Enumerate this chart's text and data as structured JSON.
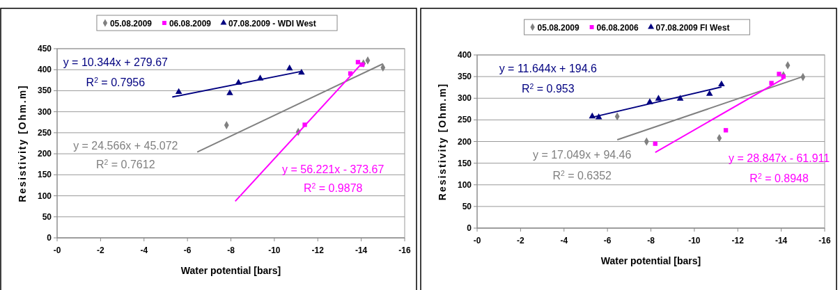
{
  "chart_data": [
    {
      "type": "scatter",
      "xlabel": "Water potential [bars]",
      "ylabel": "Resistivity [Ohm.m]",
      "xlim": [
        0,
        -16
      ],
      "xticks": [
        {
          "value": 0,
          "label": "-0"
        },
        -2,
        -4,
        -6,
        -8,
        -10,
        -12,
        -14,
        -16
      ],
      "ylim": [
        0,
        450
      ],
      "yticks": [
        0,
        50,
        100,
        150,
        200,
        250,
        300,
        350,
        400,
        450
      ],
      "grid": "y",
      "legend": "top",
      "series": [
        {
          "name": "05.08.2009",
          "color": "#808080",
          "marker": "diamond",
          "x": [
            -7.8,
            -11.1,
            -14.1,
            -14.3,
            -15
          ],
          "values": [
            268,
            252,
            415,
            422,
            405
          ]
        },
        {
          "name": "06.08.2009",
          "color": "#ff00ff",
          "marker": "square",
          "x": [
            -11.4,
            -13.5,
            -13.85,
            -14.05
          ],
          "values": [
            269,
            391,
            418,
            412
          ]
        },
        {
          "name": "07.08.2009 - WDI West",
          "color": "#000080",
          "marker": "triangle",
          "x": [
            -5.6,
            -7.95,
            -8.35,
            -9.35,
            -10.7,
            -11.25
          ],
          "values": [
            347,
            344,
            369,
            379,
            403,
            393
          ]
        },
        {
          "type": "line",
          "color": "#000080",
          "x": [
            -5.3,
            -11.25
          ],
          "values": [
            335,
            396
          ]
        },
        {
          "type": "line",
          "color": "#808080",
          "x": [
            -6.45,
            -15
          ],
          "values": [
            204,
            414
          ]
        },
        {
          "type": "line",
          "color": "#ff00ff",
          "x": [
            -8.2,
            -14.05
          ],
          "values": [
            87,
            416
          ]
        }
      ],
      "annotations": [
        "y = 10.344x + 279.67",
        "R$^{2}$ = 0.7956",
        "y = 24.566x + 45.072",
        "R$^{2}$ = 0.7612",
        "y = 56.221x - 373.67",
        "R$^{2}$ = 0.9878"
      ]
    },
    {
      "type": "scatter",
      "xlabel": "Water potential [bars]",
      "ylabel": "Resistivity [Ohm.m]",
      "xlim": [
        0,
        -16
      ],
      "xticks": [
        {
          "value": 0,
          "label": "-0"
        },
        -2,
        -4,
        -6,
        -8,
        -10,
        -12,
        -14,
        -16
      ],
      "ylim": [
        0,
        400
      ],
      "yticks": [
        0,
        50,
        100,
        150,
        200,
        250,
        300,
        350,
        400
      ],
      "grid": "y",
      "legend": "top",
      "series": [
        {
          "name": "05.08.2009",
          "color": "#808080",
          "marker": "diamond",
          "x": [
            -6.45,
            -7.8,
            -11.15,
            -14.1,
            -14.3,
            -15
          ],
          "values": [
            258,
            200,
            208,
            353,
            376,
            349
          ]
        },
        {
          "name": "06.08.2006",
          "color": "#ff00ff",
          "marker": "square",
          "x": [
            -8.2,
            -11.45,
            -13.55,
            -13.9,
            -14.1
          ],
          "values": [
            195,
            226,
            335,
            356,
            350
          ]
        },
        {
          "name": "07.08.2009 FI West",
          "color": "#000080",
          "marker": "triangle",
          "x": [
            -5.3,
            -5.6,
            -7.95,
            -8.35,
            -9.35,
            -10.7,
            -11.25
          ],
          "values": [
            258,
            256,
            291,
            299,
            299,
            310,
            332
          ]
        },
        {
          "type": "line",
          "color": "#000080",
          "x": [
            -5.3,
            -11.25
          ],
          "values": [
            256,
            326
          ]
        },
        {
          "type": "line",
          "color": "#808080",
          "x": [
            -6.45,
            -15
          ],
          "values": [
            204,
            350
          ]
        },
        {
          "type": "line",
          "color": "#ff00ff",
          "x": [
            -8.2,
            -14.1
          ],
          "values": [
            175,
            345
          ]
        }
      ],
      "annotations": [
        "y = 11.644x + 194.6",
        "R$^{2}$ = 0.953",
        "y = 17.049x + 94.46",
        "R$^{2}$ = 0.6352",
        "y = 28.847x - 61.911",
        "R$^{2}$ = 0.8948"
      ]
    }
  ]
}
